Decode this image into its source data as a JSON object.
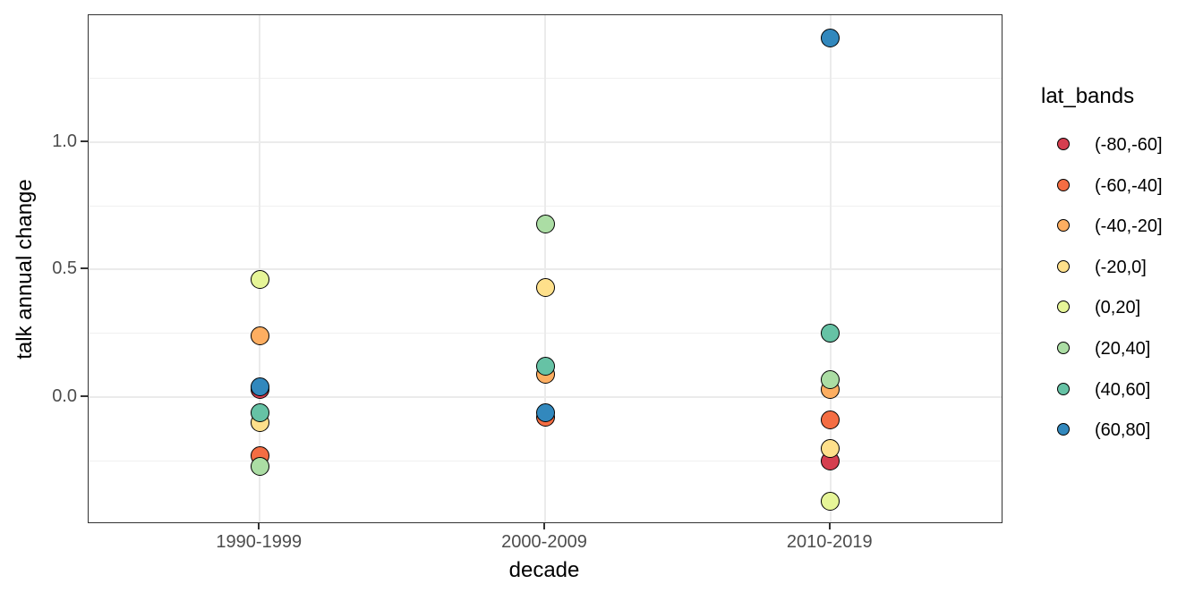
{
  "chart_data": {
    "type": "scatter",
    "title": "",
    "xlabel": "decade",
    "ylabel": "talk annual change",
    "categories": [
      "1990-1999",
      "2000-2009",
      "2010-2019"
    ],
    "y_axis": {
      "range": [
        -0.491,
        1.498
      ],
      "major_ticks": [
        0.0,
        0.5,
        1.0
      ],
      "tick_labels": [
        "0.0",
        "0.5",
        "1.0"
      ],
      "minor_gridlines": [
        -0.25,
        0.25,
        0.75,
        1.25
      ],
      "grid": true
    },
    "legend": {
      "title": "lat_bands",
      "position": "right",
      "entries": [
        {
          "label": "(-80,-60]",
          "color": "#d53e4f"
        },
        {
          "label": "(-60,-40]",
          "color": "#f46d43"
        },
        {
          "label": "(-40,-20]",
          "color": "#fdae61"
        },
        {
          "label": "(-20,0]",
          "color": "#fee08b"
        },
        {
          "label": "(0,20]",
          "color": "#e6f598"
        },
        {
          "label": "(20,40]",
          "color": "#abdda4"
        },
        {
          "label": "(40,60]",
          "color": "#66c2a5"
        },
        {
          "label": "(60,80]",
          "color": "#3288bd"
        }
      ]
    },
    "series": [
      {
        "name": "(-80,-60]",
        "color": "#d53e4f",
        "points": [
          {
            "decade": "1990-1999",
            "value": 0.03
          },
          {
            "decade": "2010-2019",
            "value": -0.25
          }
        ]
      },
      {
        "name": "(-60,-40]",
        "color": "#f46d43",
        "points": [
          {
            "decade": "1990-1999",
            "value": -0.23
          },
          {
            "decade": "2000-2009",
            "value": -0.08
          },
          {
            "decade": "2010-2019",
            "value": -0.09
          }
        ]
      },
      {
        "name": "(-40,-20]",
        "color": "#fdae61",
        "points": [
          {
            "decade": "1990-1999",
            "value": 0.24
          },
          {
            "decade": "2000-2009",
            "value": 0.09
          },
          {
            "decade": "2010-2019",
            "value": 0.03
          }
        ]
      },
      {
        "name": "(-20,0]",
        "color": "#fee08b",
        "points": [
          {
            "decade": "1990-1999",
            "value": -0.1
          },
          {
            "decade": "2000-2009",
            "value": 0.43
          },
          {
            "decade": "2010-2019",
            "value": -0.2
          }
        ]
      },
      {
        "name": "(0,20]",
        "color": "#e6f598",
        "points": [
          {
            "decade": "1990-1999",
            "value": 0.46
          },
          {
            "decade": "2010-2019",
            "value": -0.41
          }
        ]
      },
      {
        "name": "(20,40]",
        "color": "#abdda4",
        "points": [
          {
            "decade": "1990-1999",
            "value": -0.27
          },
          {
            "decade": "2000-2009",
            "value": 0.68
          },
          {
            "decade": "2010-2019",
            "value": 0.07
          }
        ]
      },
      {
        "name": "(40,60]",
        "color": "#66c2a5",
        "points": [
          {
            "decade": "1990-1999",
            "value": -0.06
          },
          {
            "decade": "2000-2009",
            "value": 0.12
          },
          {
            "decade": "2010-2019",
            "value": 0.25
          }
        ]
      },
      {
        "name": "(60,80]",
        "color": "#3288bd",
        "points": [
          {
            "decade": "1990-1999",
            "value": 0.04
          },
          {
            "decade": "2000-2009",
            "value": -0.06
          },
          {
            "decade": "2010-2019",
            "value": 1.41
          }
        ]
      }
    ],
    "style": {
      "point_stroke": "#000000",
      "grid_major_color": "#ebebeb",
      "grid_minor_color": "#f0f0f0",
      "panel_border_color": "#333333",
      "tick_label_color": "#4d4d4d",
      "axis_title_color": "#000000",
      "background": "#ffffff"
    }
  }
}
